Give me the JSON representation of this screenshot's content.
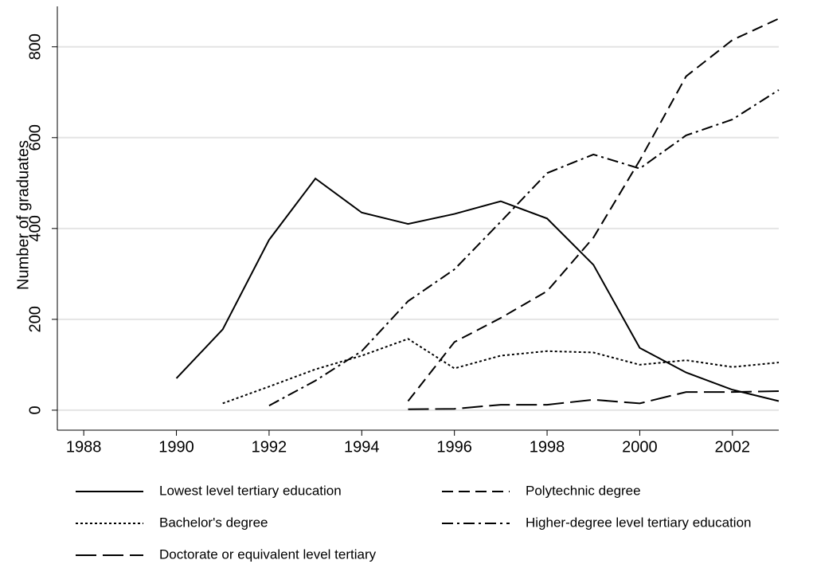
{
  "chart_data": {
    "type": "line",
    "y_label": "Number of graduates",
    "x": [
      1988,
      1989,
      1990,
      1991,
      1992,
      1993,
      1994,
      1995,
      1996,
      1997,
      1998,
      1999,
      2000,
      2001,
      2002,
      2003
    ],
    "xlim": [
      1987.43,
      2003
    ],
    "xticks": [
      1988,
      1990,
      1992,
      1994,
      1996,
      1998,
      2000,
      2002
    ],
    "ylim": [
      -44,
      889
    ],
    "yticks": [
      0,
      200,
      400,
      600,
      800
    ],
    "grid": true,
    "series": [
      {
        "name": "Lowest level tertiary education",
        "color": "#000000",
        "dash": "none",
        "values": [
          null,
          null,
          70,
          178,
          375,
          510,
          435,
          410,
          432,
          460,
          422,
          320,
          137,
          83,
          45,
          20
        ]
      },
      {
        "name": "Polytechnic degree",
        "color": "#000000",
        "dash": "14 7",
        "values": [
          null,
          null,
          null,
          null,
          null,
          null,
          null,
          20,
          150,
          203,
          262,
          380,
          550,
          735,
          815,
          862
        ]
      },
      {
        "name": "Bachelor's degree",
        "color": "#000000",
        "dash": "3 3",
        "values": [
          null,
          null,
          null,
          15,
          52,
          90,
          120,
          157,
          92,
          120,
          130,
          127,
          100,
          110,
          95,
          105
        ]
      },
      {
        "name": "Higher-degree level tertiary education",
        "color": "#000000",
        "dash": "14 5 3 5",
        "values": [
          null,
          null,
          null,
          null,
          10,
          65,
          130,
          240,
          310,
          415,
          522,
          563,
          532,
          605,
          640,
          705
        ]
      },
      {
        "name": "Doctorate or equivalent level tertiary",
        "color": "#000000",
        "dash": "26 8",
        "values": [
          null,
          null,
          null,
          null,
          null,
          null,
          null,
          2,
          3,
          12,
          12,
          23,
          15,
          40,
          40,
          42
        ]
      }
    ]
  }
}
